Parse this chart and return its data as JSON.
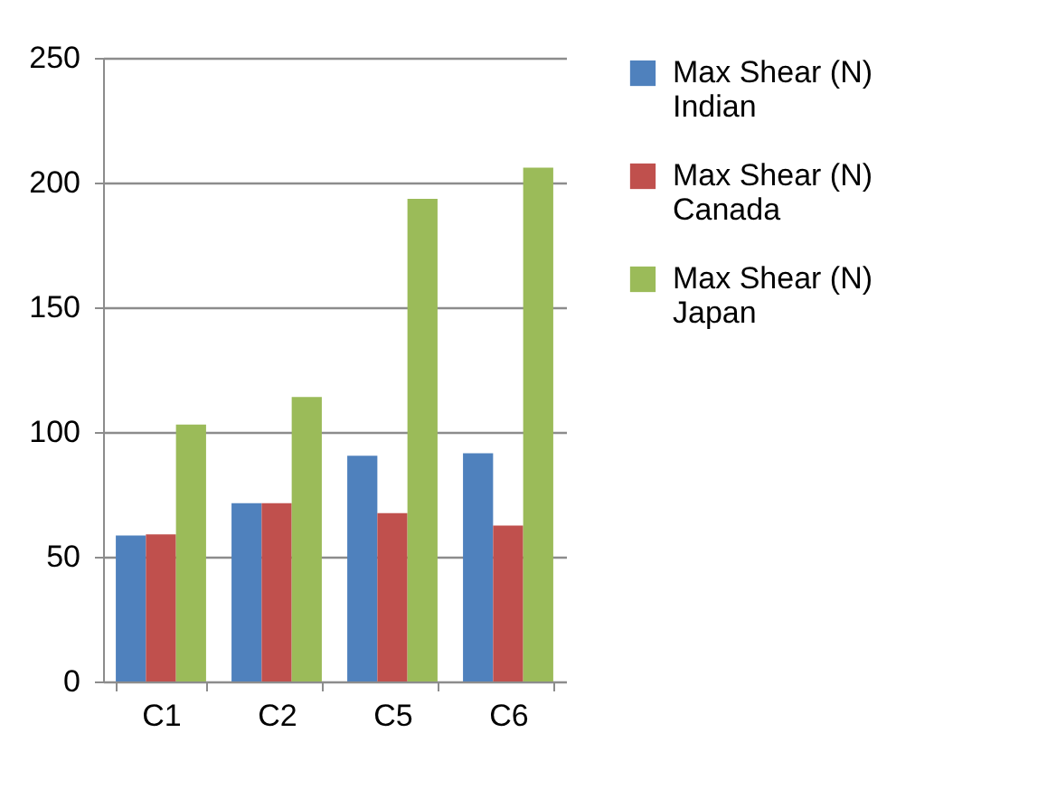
{
  "chart_data": {
    "type": "bar",
    "categories": [
      "C1",
      "C2",
      "C5",
      "C6"
    ],
    "series": [
      {
        "name": "Max Shear (N) Indian",
        "color": "#4f81bd",
        "values": [
          58.5,
          71.5,
          90.5,
          91.5
        ]
      },
      {
        "name": "Max Shear (N) Canada",
        "color": "#c0504d",
        "values": [
          59,
          71.5,
          67.5,
          62.5
        ]
      },
      {
        "name": "Max Shear (N) Japan",
        "color": "#9bbb59",
        "values": [
          103,
          114,
          193.5,
          206
        ]
      }
    ],
    "ylim": [
      0,
      250
    ],
    "yticks": [
      0,
      50,
      100,
      150,
      200,
      250
    ],
    "grid": "y",
    "legend": "right"
  }
}
